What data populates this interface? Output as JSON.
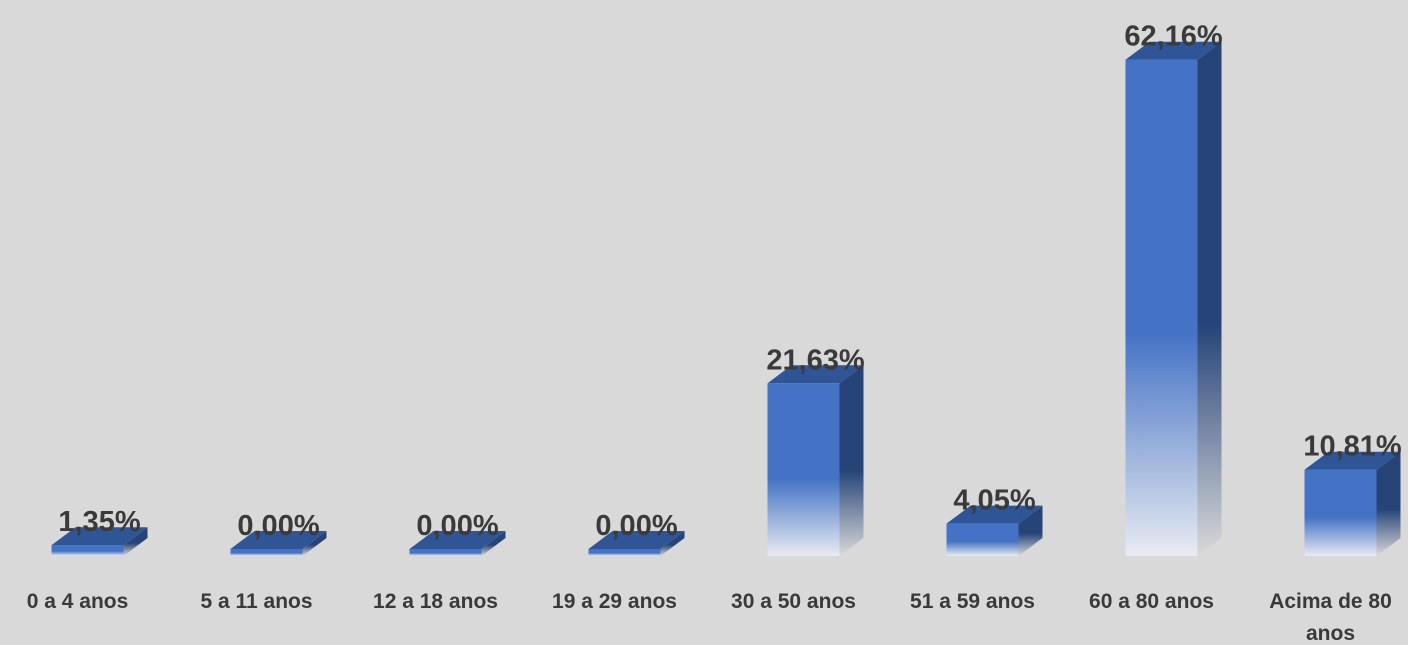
{
  "chart_data": {
    "type": "bar",
    "style": "3d-column",
    "categories": [
      "0 a 4 anos",
      "5 a 11 anos",
      "12 a 18 anos",
      "19 a 29 anos",
      "30 a 50 anos",
      "51 a 59 anos",
      "60 a 80 anos",
      "Acima de 80 anos"
    ],
    "category_lines": [
      [
        "0 a 4 anos"
      ],
      [
        "5 a 11 anos"
      ],
      [
        "12 a 18 anos"
      ],
      [
        "19 a 29 anos"
      ],
      [
        "30 a 50 anos"
      ],
      [
        "51 a 59 anos"
      ],
      [
        "60 a 80 anos"
      ],
      [
        "Acima de 80",
        "anos"
      ]
    ],
    "values": [
      1.35,
      0.0,
      0.0,
      0.0,
      21.63,
      4.05,
      62.16,
      10.81
    ],
    "value_labels": [
      "1,35%",
      "0,00%",
      "0,00%",
      "0,00%",
      "21,63%",
      "4,05%",
      "62,16%",
      "10,81%"
    ],
    "title": "",
    "xlabel": "",
    "ylabel": "",
    "ylim": [
      0,
      63
    ],
    "grid": false,
    "legend": "none",
    "colors": {
      "background": "#d9d9d9",
      "bar_front": "#4472c4",
      "bar_top": "#2f5597",
      "bar_side": "#264478",
      "text": "#3a3a3a"
    }
  }
}
